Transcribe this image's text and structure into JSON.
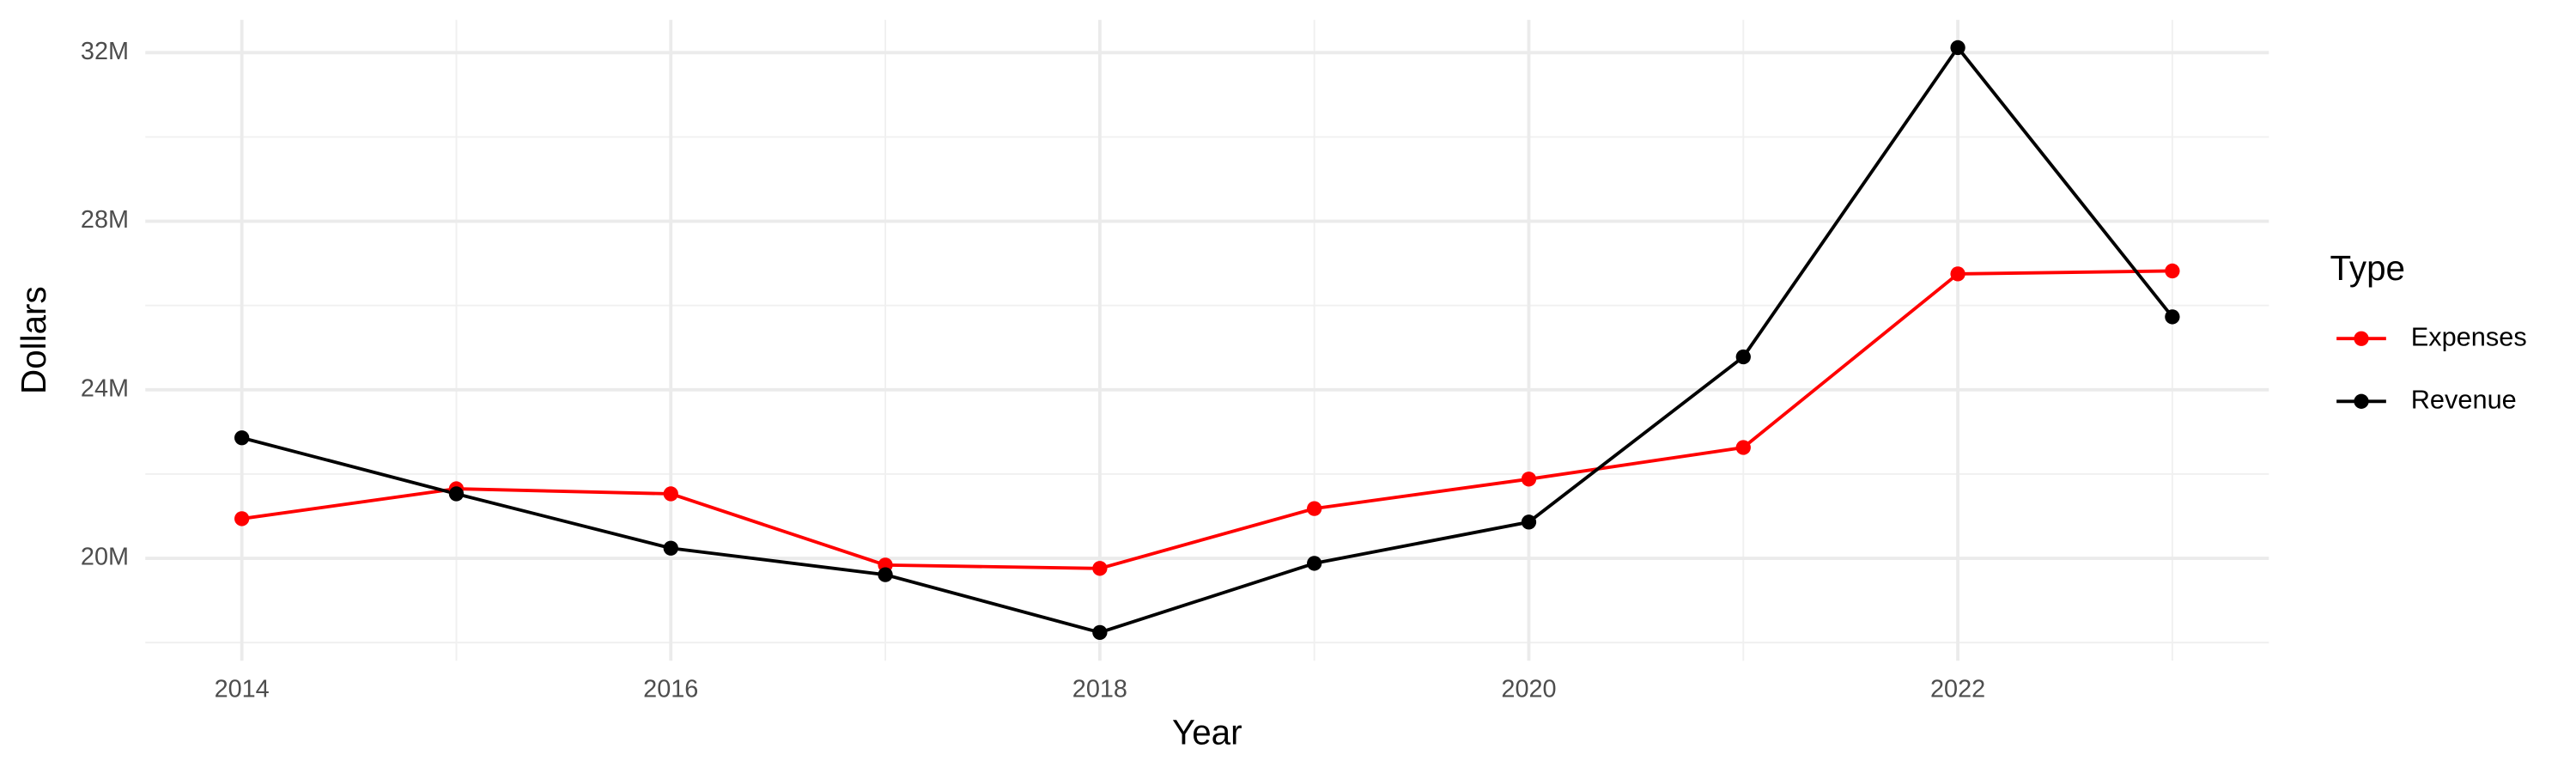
{
  "chart_data": {
    "type": "line",
    "x_label": "Year",
    "y_label": "Dollars",
    "x": [
      2014,
      2015,
      2016,
      2017,
      2018,
      2019,
      2020,
      2021,
      2022,
      2023
    ],
    "series": [
      {
        "name": "Expenses",
        "color": "#ff0000",
        "values": [
          20940000,
          21650000,
          21530000,
          19840000,
          19760000,
          21180000,
          21880000,
          22630000,
          26750000,
          26820000
        ]
      },
      {
        "name": "Revenue",
        "color": "#000000",
        "values": [
          22860000,
          21530000,
          20240000,
          19610000,
          18240000,
          19880000,
          20860000,
          24780000,
          32120000,
          25730000
        ]
      }
    ],
    "xlim": [
      2013.55,
      2023.45
    ],
    "ylim": [
      17570000,
      32780000
    ],
    "xticks": [
      2014,
      2016,
      2018,
      2020,
      2022
    ],
    "yticks": [
      {
        "value": 20000000,
        "label": "20M"
      },
      {
        "value": 24000000,
        "label": "24M"
      },
      {
        "value": 28000000,
        "label": "28M"
      },
      {
        "value": 32000000,
        "label": "32M"
      }
    ],
    "grid": true,
    "legend_title": "Type",
    "legend_position": "right"
  }
}
